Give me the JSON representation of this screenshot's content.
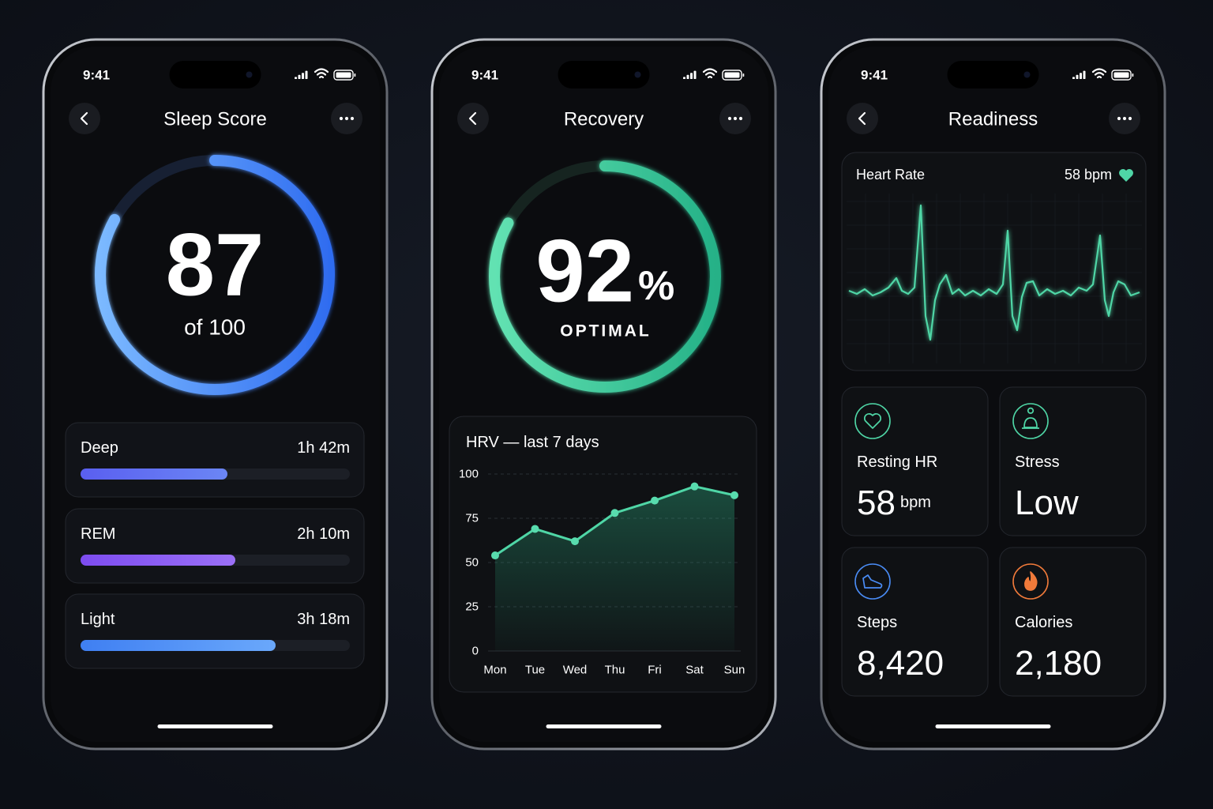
{
  "screens": [
    {
      "status_time": "9:41",
      "title": "Sleep Score",
      "score": 87,
      "score_caption": "of 100",
      "stages": [
        {
          "name": "Deep",
          "duration": "1h 42m"
        },
        {
          "name": "REM",
          "duration": "2h 10m"
        },
        {
          "name": "Light",
          "duration": "3h 18m"
        }
      ]
    },
    {
      "status_time": "9:41",
      "title": "Recovery",
      "score": 92,
      "unit": "%",
      "status": "OPTIMAL",
      "hrv": {
        "title": "HRV — last 7 days",
        "categories": [
          "Mon",
          "Tue",
          "Wed",
          "Thu",
          "Fri",
          "Sat",
          "Sun"
        ],
        "values": [
          54,
          69,
          62,
          78,
          85,
          93,
          88
        ],
        "ylim": [
          0,
          100
        ],
        "yticks": [
          0,
          25,
          50,
          75,
          100
        ]
      }
    },
    {
      "status_time": "9:41",
      "title": "Readiness",
      "heart_rate": {
        "label": "Heart Rate",
        "value": "58 bpm"
      },
      "tiles": [
        {
          "label": "Resting HR",
          "value": 58,
          "unit": "bpm"
        },
        {
          "label": "Stress",
          "value": "Low"
        },
        {
          "label": "Steps",
          "value": "8,420"
        },
        {
          "label": "Calories",
          "value": "2,180"
        }
      ]
    }
  ]
}
